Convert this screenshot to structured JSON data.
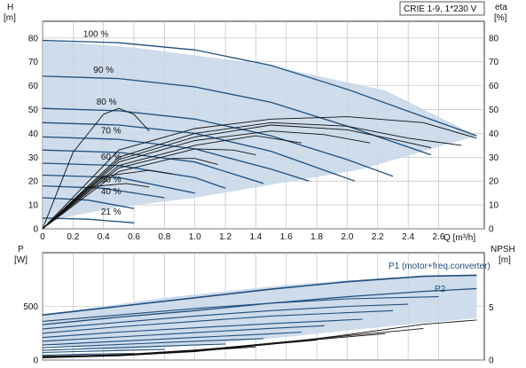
{
  "model_label": "CRIE 1-9, 1*230 V",
  "colors": {
    "region_fill": "#c6d6e7",
    "speed_curve": "#1f4e7d",
    "efficiency_curve": "#111111",
    "grid": "#b8b8b8",
    "series_label": "#1f4e7d"
  },
  "chart_data": [
    {
      "type": "line",
      "panel": "head",
      "y_left_label": "H",
      "y_left_unit": "[m]",
      "y_right_label": "eta",
      "y_right_unit": "[%]",
      "x_label": "Q [m³/h]",
      "x_ticks": [
        "0",
        "0.2",
        "0.4",
        "0.6",
        "0.8",
        "1.0",
        "1.2",
        "1.4",
        "1.6",
        "1.8",
        "2.0",
        "2.2",
        "2.4",
        "2.6"
      ],
      "y_left_ticks": [
        "0",
        "10",
        "20",
        "30",
        "40",
        "50",
        "60",
        "70",
        "80"
      ],
      "y_right_ticks": [
        "0",
        "10",
        "20",
        "30",
        "40",
        "50",
        "60",
        "70",
        "80"
      ],
      "xlim": [
        0,
        2.9
      ],
      "ylim": [
        0,
        87
      ],
      "grid": true,
      "operating_region": {
        "x": [
          0,
          0,
          0.6,
          1.45,
          2.25,
          2.85,
          2.1,
          1.55,
          1.0,
          0.5,
          0.2,
          0
        ],
        "y": [
          2,
          79,
          76,
          69,
          58,
          39,
          25,
          19,
          13,
          9,
          5.5,
          2
        ]
      },
      "speed_curves": [
        {
          "label": "100 %",
          "x": [
            0,
            0.5,
            1.0,
            1.5,
            2.0,
            2.5,
            2.85
          ],
          "y": [
            79,
            78,
            75,
            68.5,
            58.5,
            47,
            39
          ]
        },
        {
          "label": "90 %",
          "x": [
            0,
            0.5,
            1.0,
            1.5,
            2.0,
            2.55
          ],
          "y": [
            64,
            63,
            59.5,
            53,
            43,
            31
          ]
        },
        {
          "label": "80 %",
          "x": [
            0,
            0.5,
            1.0,
            1.5,
            2.0,
            2.3
          ],
          "y": [
            50.5,
            49.5,
            46,
            39,
            29,
            22
          ]
        },
        {
          "label": "",
          "x": [
            0,
            0.5,
            1.0,
            1.5,
            2.05
          ],
          "y": [
            44.5,
            43.5,
            40,
            32.5,
            20
          ]
        },
        {
          "label": "70 %",
          "x": [
            0,
            0.5,
            1.0,
            1.5,
            1.75
          ],
          "y": [
            38.5,
            37.5,
            33.5,
            25,
            20
          ]
        },
        {
          "label": "",
          "x": [
            0,
            0.5,
            1.0,
            1.45
          ],
          "y": [
            33,
            32,
            28,
            19
          ]
        },
        {
          "label": "60 %",
          "x": [
            0,
            0.5,
            1.0,
            1.2
          ],
          "y": [
            27.5,
            26.5,
            21.5,
            17
          ]
        },
        {
          "label": "",
          "x": [
            0,
            0.5,
            1.0
          ],
          "y": [
            22.5,
            21.5,
            15
          ]
        },
        {
          "label": "50 %",
          "x": [
            0,
            0.4,
            0.8
          ],
          "y": [
            18,
            17,
            13
          ]
        },
        {
          "label": "40 %",
          "x": [
            0,
            0.3,
            0.6
          ],
          "y": [
            13,
            12,
            8.5
          ]
        },
        {
          "label": "21 %",
          "x": [
            0,
            0.3,
            0.6
          ],
          "y": [
            4.5,
            4,
            2.5
          ]
        }
      ],
      "efficiency_curves": [
        {
          "x": [
            0,
            0.2,
            0.4,
            0.5,
            0.6,
            0.7
          ],
          "y": [
            0,
            32,
            48,
            50.5,
            48,
            41
          ]
        },
        {
          "x": [
            0,
            0.5,
            1.0,
            1.5,
            2.0,
            2.5,
            2.85
          ],
          "y": [
            0,
            33,
            42,
            46,
            47,
            44.5,
            38
          ]
        },
        {
          "x": [
            0,
            0.5,
            1.0,
            1.5,
            2.0,
            2.4,
            2.75
          ],
          "y": [
            0,
            30,
            40,
            44.5,
            43,
            38,
            35
          ]
        },
        {
          "x": [
            0,
            0.5,
            1.0,
            1.5,
            2.0,
            2.3,
            2.55
          ],
          "y": [
            0,
            29,
            38.5,
            43.5,
            41.5,
            37.5,
            34
          ]
        },
        {
          "x": [
            0,
            0.5,
            1.0,
            1.5,
            1.85,
            2.15
          ],
          "y": [
            0,
            28,
            37,
            41,
            39.5,
            36
          ]
        },
        {
          "x": [
            0,
            0.5,
            1.0,
            1.4,
            1.7
          ],
          "y": [
            0,
            26.5,
            35,
            39,
            36
          ]
        },
        {
          "x": [
            0,
            0.5,
            1.0,
            1.25,
            1.4
          ],
          "y": [
            0,
            25.5,
            33.5,
            33,
            31
          ]
        },
        {
          "x": [
            0,
            0.5,
            0.85,
            1.0,
            1.15
          ],
          "y": [
            0,
            24,
            29.5,
            29.5,
            27
          ]
        },
        {
          "x": [
            0,
            0.4,
            0.7,
            0.85
          ],
          "y": [
            0,
            22,
            24.5,
            23
          ]
        },
        {
          "x": [
            0,
            0.3,
            0.55,
            0.7
          ],
          "y": [
            0,
            17.5,
            19,
            17.5
          ]
        }
      ]
    },
    {
      "type": "line",
      "panel": "power",
      "y_left_label": "P",
      "y_left_unit": "[W]",
      "y_right_label": "NPSH",
      "y_right_unit": "[m]",
      "y_left_ticks": [
        "0",
        "500"
      ],
      "y_right_ticks": [
        "0",
        "5"
      ],
      "xlim": [
        0,
        2.9
      ],
      "ylim_left": [
        0,
        1000
      ],
      "ylim_right": [
        0,
        10.2
      ],
      "grid": true,
      "operating_region": {
        "x": [
          0,
          0,
          0.8,
          1.6,
          2.3,
          2.85,
          2.85,
          2.1,
          1.5,
          1.0,
          0.5,
          0
        ],
        "y": [
          140,
          420,
          580,
          700,
          770,
          790,
          390,
          290,
          200,
          140,
          90,
          140
        ]
      },
      "series": [
        {
          "name": "P1 (motor+freq.converter)",
          "x": [
            0,
            0.5,
            1.0,
            1.5,
            2.0,
            2.5,
            2.85
          ],
          "y": [
            420,
            500,
            580,
            660,
            730,
            780,
            790
          ]
        },
        {
          "name": "P2",
          "x": [
            0,
            0.5,
            1.0,
            1.5,
            2.0,
            2.5,
            2.85
          ],
          "y": [
            330,
            400,
            460,
            530,
            590,
            640,
            665
          ]
        }
      ],
      "reduced_speed_power": [
        {
          "x": [
            0,
            0.5,
            1.0,
            1.5,
            2.0,
            2.6
          ],
          "y": [
            360,
            420,
            480,
            530,
            570,
            590
          ]
        },
        {
          "x": [
            0,
            0.5,
            1.0,
            1.5,
            2.0,
            2.4
          ],
          "y": [
            290,
            350,
            410,
            460,
            500,
            520
          ]
        },
        {
          "x": [
            0,
            0.5,
            1.0,
            1.5,
            2.3
          ],
          "y": [
            250,
            310,
            360,
            410,
            460
          ]
        },
        {
          "x": [
            0,
            0.5,
            1.0,
            1.5,
            2.1
          ],
          "y": [
            210,
            260,
            300,
            340,
            380
          ]
        },
        {
          "x": [
            0,
            0.5,
            1.0,
            1.5,
            1.85
          ],
          "y": [
            175,
            215,
            255,
            295,
            320
          ]
        },
        {
          "x": [
            0,
            0.5,
            1.0,
            1.5,
            1.7
          ],
          "y": [
            140,
            175,
            210,
            245,
            260
          ]
        },
        {
          "x": [
            0,
            0.5,
            1.0,
            1.45
          ],
          "y": [
            115,
            145,
            175,
            200
          ]
        },
        {
          "x": [
            0,
            0.5,
            1.0,
            1.2
          ],
          "y": [
            90,
            115,
            140,
            150
          ]
        },
        {
          "x": [
            0,
            0.4,
            0.8
          ],
          "y": [
            70,
            85,
            100
          ]
        },
        {
          "x": [
            0,
            0.3,
            0.6
          ],
          "y": [
            45,
            55,
            60
          ]
        }
      ],
      "npsh_curves": [
        {
          "x": [
            0,
            0.5,
            1.0,
            1.5,
            2.0,
            2.5,
            2.85
          ],
          "y": [
            0.2,
            0.4,
            0.8,
            1.5,
            2.4,
            3.4,
            3.8
          ]
        },
        {
          "x": [
            0,
            0.5,
            1.0,
            1.5,
            2.0,
            2.5
          ],
          "y": [
            0.3,
            0.45,
            0.9,
            1.6,
            2.3,
            3.0
          ]
        },
        {
          "x": [
            0,
            0.5,
            1.0,
            1.5,
            2.0,
            2.25
          ],
          "y": [
            0.35,
            0.5,
            0.95,
            1.55,
            2.2,
            2.5
          ]
        },
        {
          "x": [
            0,
            0.5,
            1.0,
            1.5,
            1.8
          ],
          "y": [
            0.3,
            0.5,
            0.9,
            1.5,
            1.9
          ]
        },
        {
          "x": [
            0,
            0.5,
            1.0,
            1.4
          ],
          "y": [
            0.3,
            0.45,
            0.85,
            1.25
          ]
        },
        {
          "x": [
            0,
            0.5,
            0.9
          ],
          "y": [
            0.25,
            0.45,
            0.8
          ]
        }
      ]
    }
  ]
}
